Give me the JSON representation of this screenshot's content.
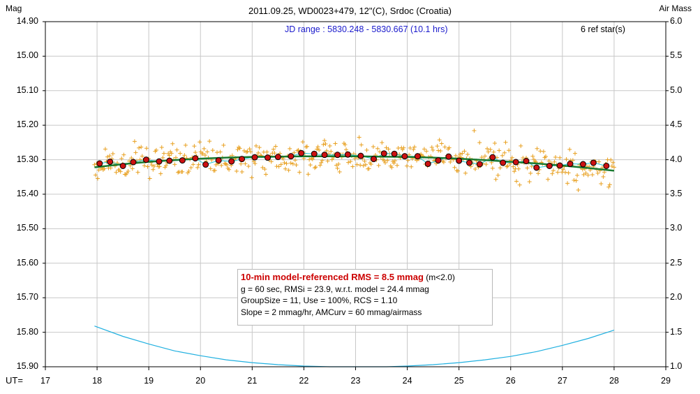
{
  "chart_data": {
    "type": "scatter",
    "title": "2011.09.25, WD0023+479, 12\"(C), Srdoc (Croatia)",
    "ylabel_left": "Mag",
    "ylabel_right": "Air Mass",
    "xlabel": "UT=",
    "jd_range": "JD range : 5830.248 - 5830.667 (10.1 hrs)",
    "ref_stars": "6 ref star(s)",
    "xlim": [
      17,
      29
    ],
    "ylim_left": [
      15.9,
      14.9
    ],
    "ylim_right": [
      1.0,
      6.0
    ],
    "x_ticks": [
      "17",
      "18",
      "19",
      "20",
      "21",
      "22",
      "23",
      "24",
      "25",
      "26",
      "27",
      "28",
      "29"
    ],
    "y_ticks_left": [
      "14.90",
      "15.00",
      "15.10",
      "15.20",
      "15.30",
      "15.40",
      "15.50",
      "15.60",
      "15.70",
      "15.80",
      "15.90"
    ],
    "y_ticks_right": [
      "6.0",
      "5.5",
      "5.0",
      "4.5",
      "4.0",
      "3.5",
      "3.0",
      "2.5",
      "2.0",
      "1.5",
      "1.0"
    ],
    "grid": true,
    "colors": {
      "raw_points": "#e8a020",
      "group_points": "#cc1111",
      "model_line": "#1a7a30",
      "moving_avg": "#20c8d8",
      "airmass": "#20b0e0",
      "grid": "#c8c8c8"
    },
    "series": [
      {
        "name": "group averages",
        "x": [
          18.05,
          18.25,
          18.5,
          18.7,
          18.95,
          19.2,
          19.4,
          19.65,
          19.9,
          20.1,
          20.35,
          20.6,
          20.8,
          21.05,
          21.3,
          21.5,
          21.75,
          21.95,
          22.2,
          22.4,
          22.65,
          22.85,
          23.1,
          23.35,
          23.55,
          23.75,
          23.95,
          24.2,
          24.4,
          24.6,
          24.8,
          25.0,
          25.2,
          25.4,
          25.65,
          25.85,
          26.1,
          26.3,
          26.5,
          26.75,
          26.95,
          27.15,
          27.4,
          27.6,
          27.85
        ],
        "y": [
          15.311,
          15.306,
          15.318,
          15.307,
          15.3,
          15.305,
          15.303,
          15.302,
          15.296,
          15.314,
          15.302,
          15.305,
          15.298,
          15.293,
          15.294,
          15.292,
          15.29,
          15.281,
          15.283,
          15.286,
          15.286,
          15.285,
          15.289,
          15.298,
          15.282,
          15.283,
          15.29,
          15.29,
          15.312,
          15.302,
          15.291,
          15.303,
          15.309,
          15.313,
          15.293,
          15.309,
          15.307,
          15.304,
          15.323,
          15.318,
          15.317,
          15.312,
          15.313,
          15.309,
          15.318
        ]
      },
      {
        "name": "model",
        "x": [
          17.95,
          18.5,
          19,
          19.5,
          20,
          20.5,
          21,
          21.5,
          22,
          22.5,
          23,
          23.5,
          24,
          24.5,
          25,
          25.5,
          26,
          26.5,
          27,
          27.5,
          28
        ],
        "y": [
          15.322,
          15.313,
          15.306,
          15.301,
          15.297,
          15.294,
          15.292,
          15.291,
          15.29,
          15.29,
          15.29,
          15.291,
          15.292,
          15.294,
          15.297,
          15.301,
          15.306,
          15.311,
          15.317,
          15.324,
          15.332
        ]
      },
      {
        "name": "air mass",
        "x": [
          17.95,
          18.5,
          19,
          19.5,
          20,
          20.5,
          21,
          21.5,
          22,
          22.5,
          22.7,
          23.6,
          24,
          24.5,
          25,
          25.5,
          26,
          26.5,
          27,
          27.5,
          28
        ],
        "y": [
          1.59,
          1.44,
          1.33,
          1.23,
          1.16,
          1.1,
          1.06,
          1.03,
          1.01,
          1.0,
          1.0,
          1.0,
          1.01,
          1.03,
          1.06,
          1.1,
          1.15,
          1.22,
          1.31,
          1.41,
          1.53
        ]
      }
    ],
    "raw_scatter": {
      "x_start": 17.95,
      "x_end": 28.0,
      "count": 480,
      "sigma_mmag": 24
    },
    "stats": {
      "line1_hl": "10-min model-referenced RMS = 8.5 mmag",
      "line1_rest": " (m<2.0)",
      "line2": "g = 60 sec, RMSi = 23.9, w.r.t. model = 24.4 mmag",
      "line3": "GroupSize = 11, Use = 100%, RCS = 1.10",
      "line4": "Slope = 2 mmag/hr, AMCurv = 60 mmag/airmass"
    }
  }
}
